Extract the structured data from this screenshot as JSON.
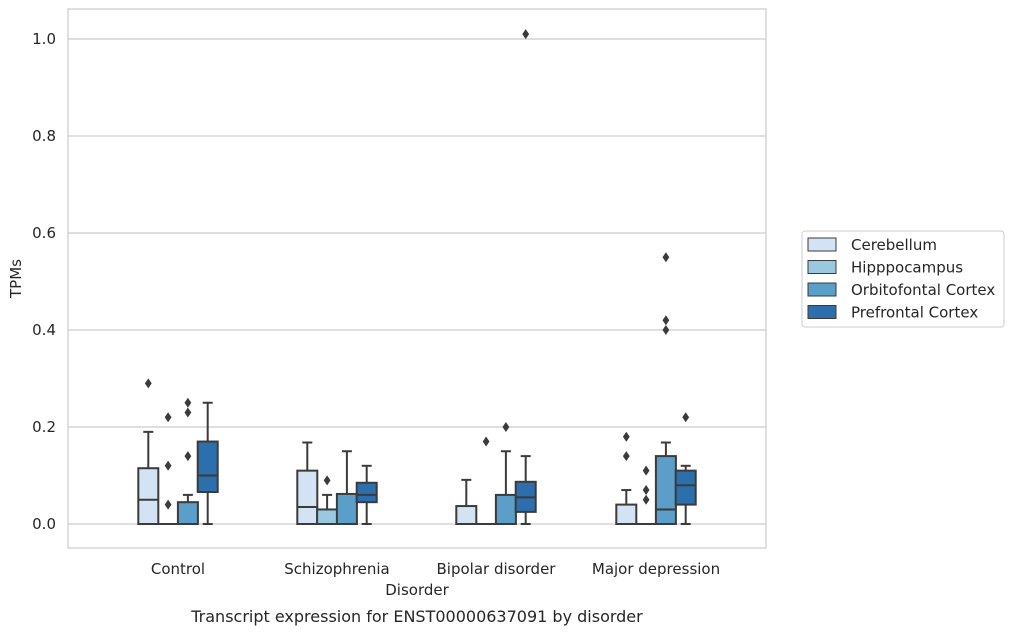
{
  "chart_data": {
    "type": "box",
    "xlabel": "Disorder",
    "ylabel": "TPMs",
    "caption": "Transcript expression for ENST00000637091 by disorder",
    "ylim": [
      -0.05,
      1.06
    ],
    "yticks": [
      "0.0",
      "0.2",
      "0.4",
      "0.6",
      "0.8",
      "1.0"
    ],
    "grid": "horizontal",
    "legend_position": "right",
    "categories": [
      "Control",
      "Schizophrenia",
      "Bipolar disorder",
      "Major depression"
    ],
    "series": [
      {
        "name": "Cerebellum",
        "color": "#d3e3f3",
        "boxes": [
          {
            "q1": 0.0,
            "median": 0.05,
            "q3": 0.115,
            "whislo": 0.0,
            "whishi": 0.19,
            "fliers": [
              0.29
            ]
          },
          {
            "q1": 0.0,
            "median": 0.035,
            "q3": 0.11,
            "whislo": 0.0,
            "whishi": 0.168,
            "fliers": []
          },
          {
            "q1": 0.0,
            "median": 0.0,
            "q3": 0.037,
            "whislo": 0.0,
            "whishi": 0.091,
            "fliers": []
          },
          {
            "q1": 0.0,
            "median": 0.0,
            "q3": 0.04,
            "whislo": 0.0,
            "whishi": 0.07,
            "fliers": [
              0.14,
              0.18
            ]
          }
        ]
      },
      {
        "name": "Hipppocampus",
        "color": "#9ac8e0",
        "boxes": [
          {
            "q1": 0.0,
            "median": 0.0,
            "q3": 0.0,
            "whislo": 0.0,
            "whishi": 0.0,
            "fliers": [
              0.04,
              0.12,
              0.22
            ]
          },
          {
            "q1": 0.0,
            "median": 0.0,
            "q3": 0.03,
            "whislo": 0.0,
            "whishi": 0.06,
            "fliers": [
              0.09
            ]
          },
          {
            "q1": 0.0,
            "median": 0.0,
            "q3": 0.0,
            "whislo": 0.0,
            "whishi": 0.0,
            "fliers": [
              0.17
            ]
          },
          {
            "q1": 0.0,
            "median": 0.0,
            "q3": 0.0,
            "whislo": 0.0,
            "whishi": 0.0,
            "fliers": [
              0.05,
              0.07,
              0.11
            ]
          }
        ]
      },
      {
        "name": "Orbitofontal Cortex",
        "color": "#5a9ec9",
        "boxes": [
          {
            "q1": 0.0,
            "median": 0.0,
            "q3": 0.045,
            "whislo": 0.0,
            "whishi": 0.06,
            "fliers": [
              0.14,
              0.23,
              0.25
            ]
          },
          {
            "q1": 0.0,
            "median": 0.0,
            "q3": 0.062,
            "whislo": 0.0,
            "whishi": 0.15,
            "fliers": []
          },
          {
            "q1": 0.0,
            "median": 0.0,
            "q3": 0.06,
            "whislo": 0.0,
            "whishi": 0.15,
            "fliers": [
              0.2
            ]
          },
          {
            "q1": 0.0,
            "median": 0.03,
            "q3": 0.14,
            "whislo": 0.0,
            "whishi": 0.168,
            "fliers": [
              0.4,
              0.42,
              0.55
            ]
          }
        ]
      },
      {
        "name": "Prefrontal Cortex",
        "color": "#2d6fad",
        "boxes": [
          {
            "q1": 0.066,
            "median": 0.1,
            "q3": 0.17,
            "whislo": 0.0,
            "whishi": 0.25,
            "fliers": []
          },
          {
            "q1": 0.045,
            "median": 0.06,
            "q3": 0.085,
            "whislo": 0.0,
            "whishi": 0.12,
            "fliers": []
          },
          {
            "q1": 0.025,
            "median": 0.055,
            "q3": 0.087,
            "whislo": 0.0,
            "whishi": 0.14,
            "fliers": [
              1.01
            ]
          },
          {
            "q1": 0.04,
            "median": 0.08,
            "q3": 0.11,
            "whislo": 0.0,
            "whishi": 0.12,
            "fliers": [
              0.22
            ]
          }
        ]
      }
    ]
  }
}
